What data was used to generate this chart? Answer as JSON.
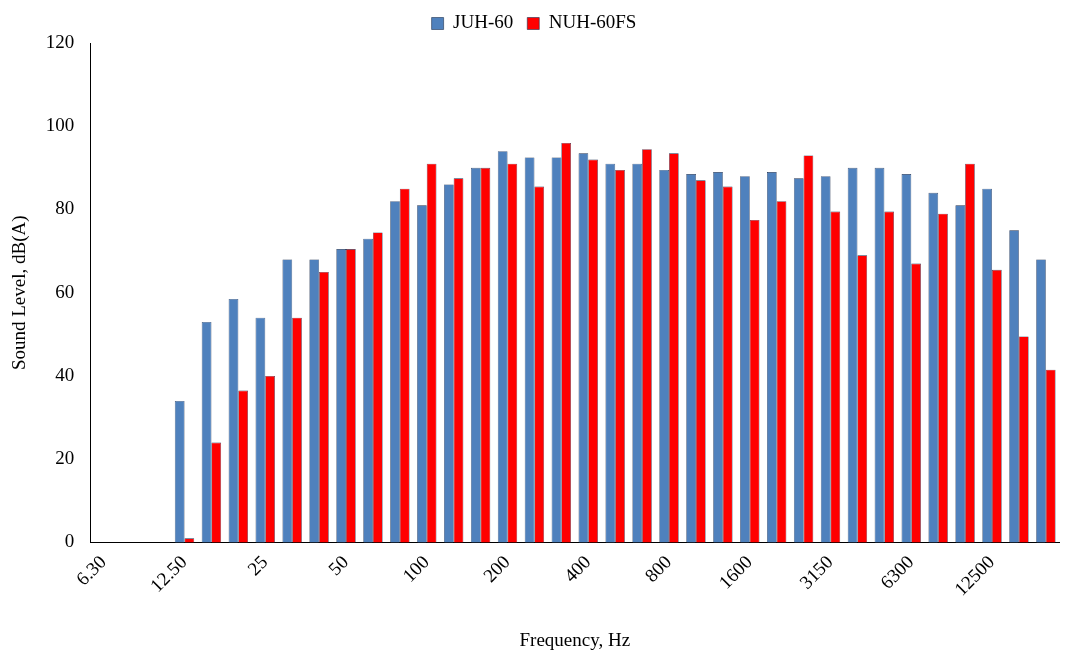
{
  "chart_data": {
    "type": "bar",
    "xlabel": "Frequency, Hz",
    "ylabel": "Sound Level, dB(A)",
    "categories": [
      "6.30",
      null,
      null,
      "12.50",
      null,
      null,
      "25",
      null,
      null,
      "50",
      null,
      null,
      "100",
      null,
      null,
      "200",
      null,
      null,
      "400",
      null,
      null,
      "800",
      null,
      null,
      "1600",
      null,
      null,
      "3150",
      null,
      null,
      "6300",
      null,
      null,
      "12500",
      null,
      null
    ],
    "series": [
      {
        "name": "JUH-60",
        "color": "#4f81bd",
        "values": [
          0,
          0,
          0,
          34,
          53,
          58.5,
          54,
          68,
          68,
          70.5,
          73,
          82,
          81,
          86,
          90,
          94,
          92.5,
          92.5,
          93.5,
          91,
          91,
          89.5,
          88.5,
          89,
          88,
          89,
          87.5,
          88,
          90,
          90,
          88.5,
          84,
          81,
          85,
          75,
          68
        ]
      },
      {
        "name": "NUH-60FS",
        "color": "#ff0000",
        "values": [
          0,
          0,
          0,
          1,
          24,
          36.5,
          40,
          54,
          65,
          70.5,
          74.5,
          85,
          91,
          87.5,
          90,
          91,
          85.5,
          96,
          92,
          89.5,
          94.5,
          93.5,
          87,
          85.5,
          77.5,
          82,
          93,
          79.5,
          69,
          79.5,
          67,
          79,
          91,
          65.5,
          49.5,
          41.5
        ]
      }
    ],
    "ylim": [
      0,
      120
    ],
    "yticks": [
      0,
      20,
      40,
      60,
      80,
      100,
      120
    ],
    "grid": false,
    "legend": "top"
  }
}
